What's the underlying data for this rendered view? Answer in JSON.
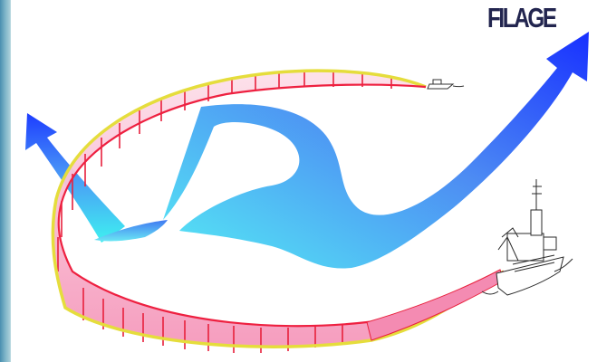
{
  "slide": {
    "title": "FILAGE"
  },
  "figure": {
    "elements": [
      "fishing-vessel",
      "towed-net-ribbon",
      "net-float-boat",
      "current-flow-arrow-left",
      "current-flow-arrow-right"
    ],
    "colors": {
      "net_fill": "#f7a8c4",
      "net_edge_outer": "#e8e040",
      "net_edge_inner": "#ee2040",
      "net_struts": "#e8203c",
      "arrow_dark": "#1a2cff",
      "arrow_light": "#44e6f0"
    }
  }
}
